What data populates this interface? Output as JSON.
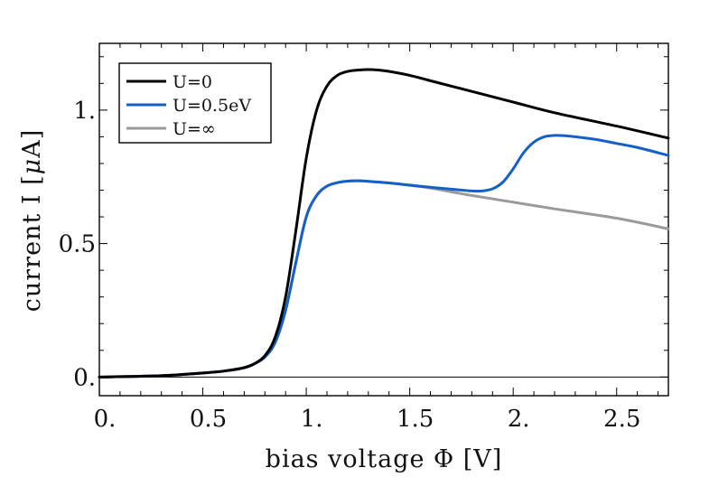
{
  "chart_data": {
    "type": "line",
    "title": "",
    "xlabel": "bias voltage Φ [V]",
    "ylabel_prefix": "current I [",
    "ylabel_unit_mu": "μ",
    "ylabel_unit_A": "A]",
    "xlim": [
      0,
      2.75
    ],
    "ylim": [
      -0.07,
      1.25
    ],
    "x_ticks": [
      {
        "value": 0,
        "label": "0."
      },
      {
        "value": 0.5,
        "label": "0.5"
      },
      {
        "value": 1,
        "label": "1."
      },
      {
        "value": 1.5,
        "label": "1.5"
      },
      {
        "value": 2,
        "label": "2."
      },
      {
        "value": 2.5,
        "label": "2.5"
      }
    ],
    "y_ticks": [
      {
        "value": 0,
        "label": "0."
      },
      {
        "value": 0.5,
        "label": "0.5"
      },
      {
        "value": 1,
        "label": "1."
      }
    ],
    "grid": false,
    "legend_position": "top-left",
    "series": [
      {
        "name": "U=0",
        "color": "#000000",
        "x": [
          0,
          0.3,
          0.5,
          0.6,
          0.7,
          0.75,
          0.8,
          0.85,
          0.9,
          0.95,
          1.0,
          1.05,
          1.1,
          1.15,
          1.2,
          1.25,
          1.3,
          1.35,
          1.4,
          1.5,
          1.6,
          1.8,
          2.0,
          2.2,
          2.5,
          2.75
        ],
        "y": [
          0,
          0.005,
          0.015,
          0.022,
          0.035,
          0.05,
          0.08,
          0.15,
          0.3,
          0.55,
          0.82,
          1.0,
          1.09,
          1.13,
          1.145,
          1.15,
          1.152,
          1.15,
          1.145,
          1.13,
          1.11,
          1.07,
          1.03,
          0.99,
          0.94,
          0.895
        ]
      },
      {
        "name": "U=0.5eV",
        "color": "#1560c8",
        "x": [
          0,
          0.3,
          0.5,
          0.6,
          0.7,
          0.75,
          0.8,
          0.85,
          0.9,
          0.95,
          1.0,
          1.05,
          1.1,
          1.15,
          1.2,
          1.25,
          1.3,
          1.4,
          1.5,
          1.6,
          1.7,
          1.8,
          1.85,
          1.9,
          1.95,
          2.0,
          2.05,
          2.1,
          2.15,
          2.2,
          2.25,
          2.3,
          2.4,
          2.5,
          2.6,
          2.75
        ],
        "y": [
          0,
          0.005,
          0.015,
          0.022,
          0.035,
          0.05,
          0.075,
          0.13,
          0.25,
          0.43,
          0.6,
          0.68,
          0.715,
          0.728,
          0.734,
          0.735,
          0.733,
          0.727,
          0.719,
          0.711,
          0.704,
          0.697,
          0.697,
          0.705,
          0.73,
          0.78,
          0.84,
          0.88,
          0.9,
          0.905,
          0.904,
          0.9,
          0.89,
          0.875,
          0.86,
          0.83
        ]
      },
      {
        "name": "U=∞",
        "color": "#9a9a9a",
        "x": [
          0,
          0.3,
          0.5,
          0.6,
          0.7,
          0.75,
          0.8,
          0.85,
          0.9,
          0.95,
          1.0,
          1.05,
          1.1,
          1.15,
          1.2,
          1.25,
          1.3,
          1.4,
          1.5,
          1.6,
          1.8,
          2.0,
          2.2,
          2.5,
          2.75
        ],
        "y": [
          0,
          0.005,
          0.015,
          0.022,
          0.035,
          0.05,
          0.075,
          0.13,
          0.25,
          0.43,
          0.6,
          0.68,
          0.715,
          0.728,
          0.734,
          0.735,
          0.733,
          0.727,
          0.718,
          0.708,
          0.68,
          0.655,
          0.63,
          0.595,
          0.555
        ]
      }
    ]
  }
}
